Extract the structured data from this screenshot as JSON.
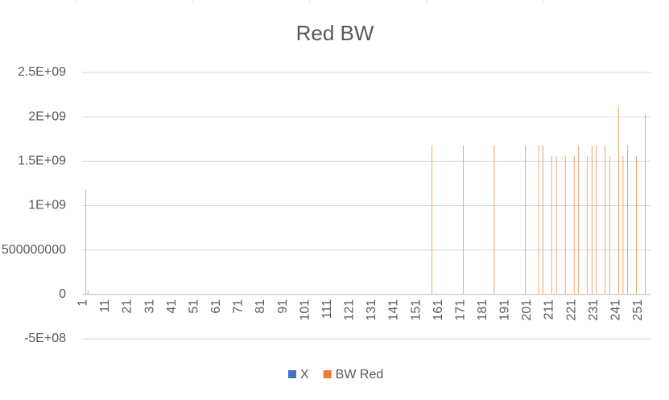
{
  "chart_data": {
    "type": "bar",
    "title": "Red BW",
    "categories": [
      "1",
      null,
      null,
      null,
      null,
      null,
      null,
      null,
      null,
      null,
      "11",
      null,
      null,
      null,
      null,
      null,
      null,
      null,
      null,
      null,
      "21",
      null,
      null,
      null,
      null,
      null,
      null,
      null,
      null,
      null,
      "31",
      null,
      null,
      null,
      null,
      null,
      null,
      null,
      null,
      null,
      "41",
      null,
      null,
      null,
      null,
      null,
      null,
      null,
      null,
      null,
      "51",
      null,
      null,
      null,
      null,
      null,
      null,
      null,
      null,
      null,
      "61",
      null,
      null,
      null,
      null,
      null,
      null,
      null,
      null,
      null,
      "71",
      null,
      null,
      null,
      null,
      null,
      null,
      null,
      null,
      null,
      "81",
      null,
      null,
      null,
      null,
      null,
      null,
      null,
      null,
      null,
      "91",
      null,
      null,
      null,
      null,
      null,
      null,
      null,
      null,
      null,
      "101",
      null,
      null,
      null,
      null,
      null,
      null,
      null,
      null,
      null,
      "111",
      null,
      null,
      null,
      null,
      null,
      null,
      null,
      null,
      null,
      "121",
      null,
      null,
      null,
      null,
      null,
      null,
      null,
      null,
      null,
      "131",
      null,
      null,
      null,
      null,
      null,
      null,
      null,
      null,
      null,
      "141",
      null,
      null,
      null,
      null,
      null,
      null,
      null,
      null,
      null,
      "151",
      null,
      null,
      null,
      null,
      null,
      null,
      null,
      null,
      null,
      "161",
      null,
      null,
      null,
      null,
      null,
      null,
      null,
      null,
      null,
      "171",
      null,
      null,
      null,
      null,
      null,
      null,
      null,
      null,
      null,
      "181",
      null,
      null,
      null,
      null,
      null,
      null,
      null,
      null,
      null,
      "191",
      null,
      null,
      null,
      null,
      null,
      null,
      null,
      null,
      null,
      "201",
      null,
      null,
      null,
      null,
      null,
      null,
      null,
      null,
      null,
      "211",
      null,
      null,
      null,
      null,
      null,
      null,
      null,
      null,
      null,
      "221",
      null,
      null,
      null,
      null,
      null,
      null,
      null,
      null,
      null,
      "231",
      null,
      null,
      null,
      null,
      null,
      null,
      null,
      null,
      null,
      "241",
      null,
      null,
      null,
      null,
      null,
      null,
      null,
      null,
      null,
      "251",
      null,
      null,
      null,
      null,
      null
    ],
    "series": [
      {
        "name": "X",
        "color": "#4472c4",
        "values": [
          0,
          0,
          0,
          0,
          0,
          0,
          0,
          0,
          0,
          0,
          0,
          0,
          0,
          0,
          0,
          0,
          0,
          0,
          0,
          0,
          0,
          0,
          0,
          0,
          0,
          0,
          0,
          0,
          0,
          0,
          0,
          0,
          0,
          0,
          0,
          0,
          0,
          0,
          0,
          0,
          0,
          0,
          0,
          0,
          0,
          0,
          0,
          0,
          0,
          0,
          0,
          0,
          0,
          0,
          0,
          0,
          0,
          0,
          0,
          0,
          0,
          0,
          0,
          0,
          0,
          0,
          0,
          0,
          0,
          0,
          0,
          0,
          0,
          0,
          0,
          0,
          0,
          0,
          0,
          0,
          0,
          0,
          0,
          0,
          0,
          0,
          0,
          0,
          0,
          0,
          0,
          0,
          0,
          0,
          0,
          0,
          0,
          0,
          0,
          0,
          0,
          0,
          0,
          0,
          0,
          0,
          0,
          0,
          0,
          0,
          0,
          0,
          0,
          0,
          0,
          0,
          0,
          0,
          0,
          0,
          0,
          0,
          0,
          0,
          0,
          0,
          0,
          0,
          0,
          0,
          0,
          0,
          0,
          0,
          0,
          0,
          0,
          0,
          0,
          0,
          0,
          0,
          0,
          0,
          0,
          0,
          0,
          0,
          0,
          0,
          0,
          0,
          0,
          0,
          0,
          0,
          0,
          0,
          0,
          0,
          0,
          0,
          0,
          0,
          0,
          0,
          0,
          0,
          0,
          0,
          0,
          0,
          0,
          0,
          0,
          0,
          0,
          0,
          0,
          0,
          0,
          0,
          0,
          0,
          0,
          0,
          0,
          0,
          0,
          0,
          0,
          0,
          0,
          0,
          0,
          0,
          0,
          0,
          0,
          0,
          0,
          0,
          0,
          0,
          0,
          0,
          0,
          0,
          0,
          0,
          0,
          0,
          0,
          0,
          0,
          0,
          0,
          0,
          0,
          0,
          0,
          0,
          0,
          0,
          0,
          0,
          0,
          0,
          0,
          0,
          0,
          0,
          0,
          0,
          0,
          0,
          0,
          0,
          0,
          0,
          0,
          0,
          0,
          0,
          0,
          0,
          0,
          0,
          0,
          0,
          0,
          0,
          0,
          0,
          0,
          0
        ]
      },
      {
        "name": "BW Red",
        "color": "#ed7d31",
        "values": [
          0,
          1180000000,
          50000000,
          0,
          0,
          0,
          0,
          0,
          0,
          0,
          0,
          0,
          0,
          0,
          0,
          0,
          0,
          0,
          0,
          0,
          0,
          0,
          0,
          0,
          0,
          0,
          0,
          0,
          0,
          0,
          0,
          0,
          0,
          0,
          0,
          0,
          0,
          0,
          0,
          0,
          0,
          0,
          0,
          0,
          0,
          0,
          0,
          0,
          0,
          0,
          0,
          0,
          0,
          0,
          0,
          0,
          0,
          0,
          0,
          0,
          0,
          0,
          0,
          0,
          0,
          0,
          0,
          0,
          0,
          0,
          0,
          0,
          0,
          0,
          0,
          0,
          0,
          0,
          0,
          0,
          0,
          0,
          0,
          0,
          0,
          0,
          0,
          0,
          0,
          0,
          0,
          0,
          0,
          0,
          0,
          0,
          0,
          0,
          0,
          0,
          0,
          0,
          0,
          0,
          0,
          0,
          0,
          0,
          0,
          0,
          0,
          0,
          0,
          0,
          0,
          0,
          0,
          0,
          0,
          0,
          0,
          0,
          0,
          0,
          0,
          0,
          0,
          0,
          0,
          0,
          0,
          0,
          0,
          0,
          0,
          0,
          0,
          0,
          0,
          0,
          0,
          0,
          0,
          0,
          0,
          0,
          0,
          0,
          0,
          0,
          0,
          0,
          0,
          0,
          0,
          0,
          0,
          1680000000,
          0,
          0,
          0,
          0,
          0,
          0,
          0,
          0,
          0,
          0,
          0,
          0,
          0,
          1680000000,
          0,
          0,
          0,
          0,
          0,
          0,
          0,
          0,
          0,
          0,
          0,
          0,
          0,
          1680000000,
          0,
          0,
          0,
          0,
          0,
          0,
          0,
          0,
          0,
          0,
          0,
          0,
          0,
          1680000000,
          0,
          0,
          0,
          0,
          0,
          1680000000,
          0,
          1680000000,
          0,
          0,
          0,
          1560000000,
          0,
          1560000000,
          0,
          0,
          0,
          1560000000,
          0,
          0,
          0,
          1560000000,
          0,
          1680000000,
          0,
          0,
          0,
          1560000000,
          0,
          1680000000,
          0,
          1680000000,
          0,
          0,
          0,
          1680000000,
          0,
          1560000000,
          0,
          0,
          0,
          2120000000,
          0,
          1560000000,
          0,
          1680000000,
          0,
          0,
          0,
          1560000000,
          0,
          0,
          0,
          2030000000,
          0,
          0
        ]
      }
    ],
    "ylim": [
      -500000000,
      2500000000
    ],
    "yticks": [
      {
        "value": -500000000,
        "label": "-5E+08"
      },
      0,
      500000000,
      {
        "value": 1000000000,
        "label": "1E+09"
      },
      {
        "value": 1500000000,
        "label": "1.5E+09"
      },
      {
        "value": 2000000000,
        "label": "2E+09"
      },
      {
        "value": 2500000000,
        "label": "2.5E+09"
      }
    ],
    "grid": true,
    "legend": "bottom"
  }
}
